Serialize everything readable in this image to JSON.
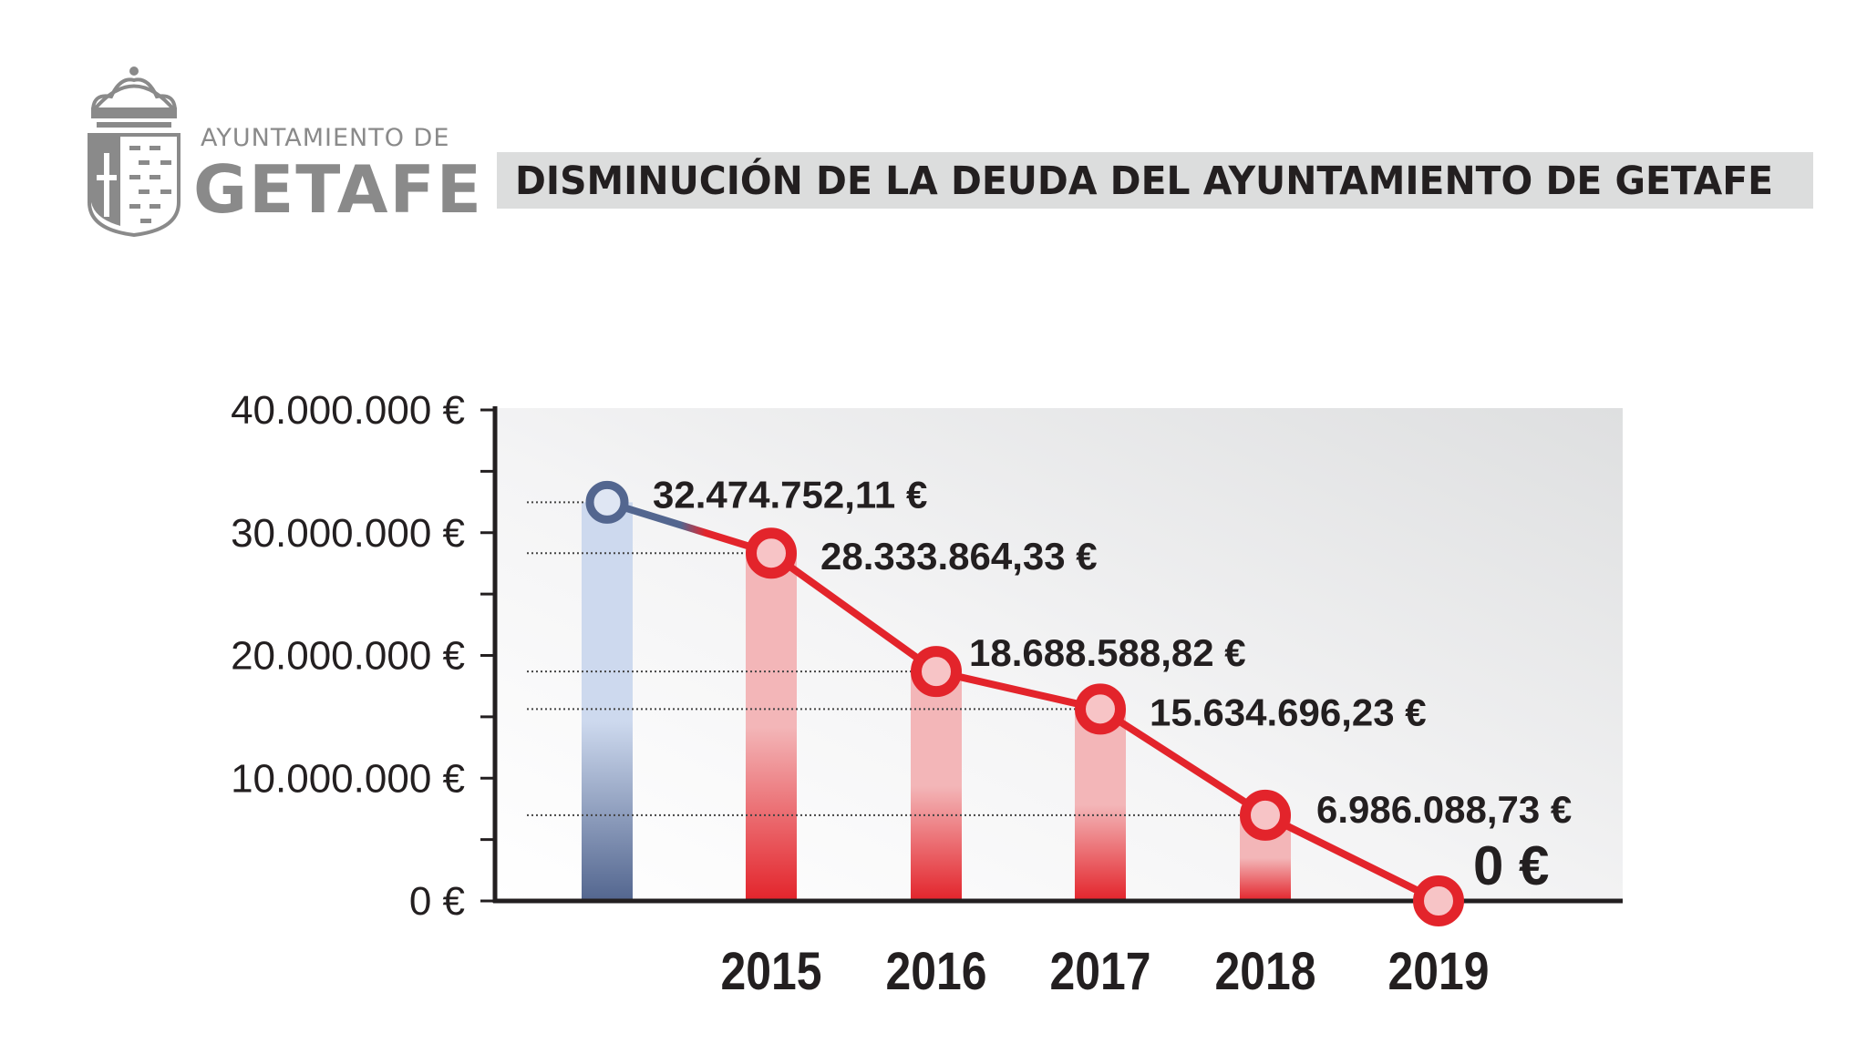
{
  "header": {
    "org_line1": "AYUNTAMIENTO DE",
    "org_line2": "GETAFE",
    "title": "DISMINUCIÓN DE LA DEUDA DEL AYUNTAMIENTO DE GETAFE"
  },
  "colors": {
    "first_point": "#53668f",
    "red": "#e3242b",
    "bar_light_red": "#f3b6b8",
    "bar_light_blue": "#cdd9ee",
    "panel_gray": "#e6e7e8",
    "title_bar": "#dcdddd",
    "logo_gray": "#8a8a8a"
  },
  "chart_data": {
    "type": "line",
    "title": "DISMINUCIÓN DE LA DEUDA DEL AYUNTAMIENTO DE GETAFE",
    "xlabel": "",
    "ylabel": "",
    "ylim": [
      0,
      40000000
    ],
    "grid": false,
    "y_ticks": [
      "0 €",
      "10.000.000 €",
      "20.000.000 €",
      "30.000.000 €",
      "40.000.000 €"
    ],
    "x": [
      "",
      "2015",
      "2016",
      "2017",
      "2018",
      "2019"
    ],
    "values": [
      32474752.11,
      28333864.33,
      18688588.82,
      15634696.23,
      6986088.73,
      0
    ],
    "labels": [
      "32.474.752,11 €",
      "28.333.864,33 €",
      "18.688.588,82 €",
      "15.634.696,23 €",
      "6.986.088,73 €",
      "0 €"
    ]
  }
}
